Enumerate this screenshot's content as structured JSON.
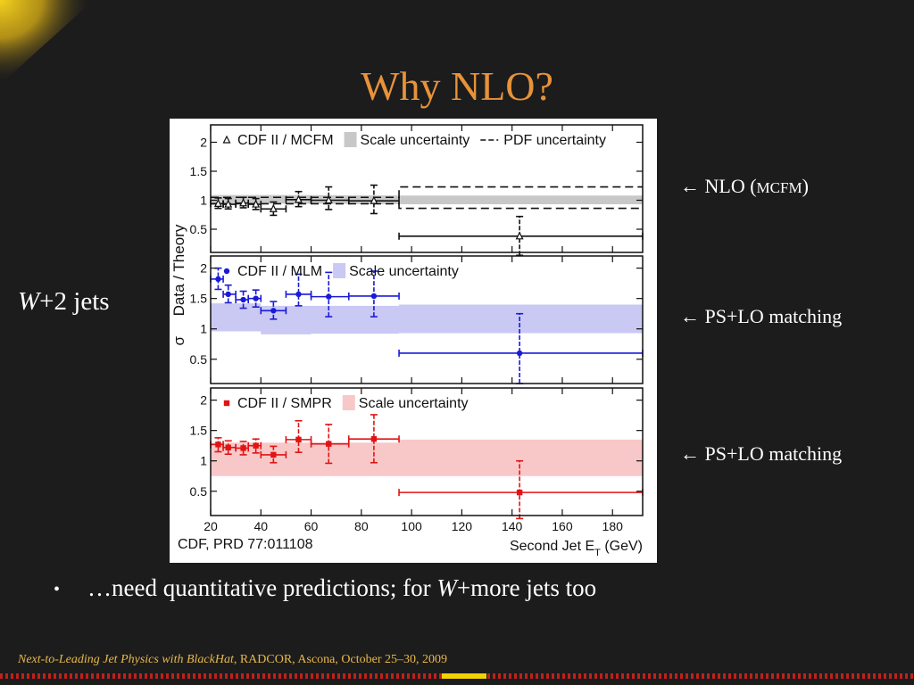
{
  "slide": {
    "title": "Why NLO?",
    "side_label": {
      "italic": "W",
      "rest": "+2 jets"
    },
    "annotations": [
      {
        "arrow": "←",
        "text": "NLO (",
        "small": "MCFM",
        "close": ")"
      },
      {
        "arrow": "←",
        "text": "PS+LO matching",
        "small": "",
        "close": ""
      },
      {
        "arrow": "←",
        "text": "PS+LO matching",
        "small": "",
        "close": ""
      }
    ],
    "bullet": {
      "marker": "•",
      "pre": "…need quantitative predictions; for ",
      "italic": "W",
      "post": "+more jets too"
    },
    "footer": {
      "italic": "Next-to-Leading Jet Physics with BlackHat",
      "rest": ", RADCOR, Ascona, October 25–30, 2009"
    },
    "colors": {
      "background": "#1c1c1c",
      "title": "#e8923a",
      "footer": "#e8b84a",
      "accent": "#f2d200"
    }
  },
  "chart_data": {
    "type": "scatter",
    "xlabel": "Second Jet E",
    "xlabel_sub": "T",
    "xlabel_unit": " (GeV)",
    "ylabel": "Data / Theory",
    "ylabel_prefix": "σ",
    "citation": "CDF, PRD 77:011108",
    "xlim": [
      20,
      192
    ],
    "xticks": [
      20,
      40,
      60,
      80,
      100,
      120,
      140,
      160,
      180
    ],
    "panels": [
      {
        "ylim": [
          0.1,
          2.3
        ],
        "yticks": [
          0.5,
          1,
          1.5,
          2
        ],
        "color": "#111111",
        "marker": "triangle",
        "legend": [
          {
            "type": "marker",
            "label": "CDF II / MCFM"
          },
          {
            "type": "band",
            "color": "#c8c8c8",
            "label": "Scale uncertainty"
          },
          {
            "type": "dash",
            "label": "PDF uncertainty"
          }
        ],
        "band": [
          [
            20,
            0.94,
            1.09
          ],
          [
            60,
            0.94,
            1.09
          ],
          [
            100,
            0.93,
            1.08
          ],
          [
            192,
            0.93,
            1.08
          ]
        ],
        "pdf_upper": [
          [
            20,
            1.05
          ],
          [
            95,
            1.05
          ],
          [
            95,
            1.23
          ],
          [
            192,
            1.23
          ]
        ],
        "pdf_lower": [
          [
            20,
            0.94
          ],
          [
            95,
            0.94
          ],
          [
            95,
            0.86
          ],
          [
            192,
            0.86
          ]
        ],
        "points": [
          {
            "x": 23,
            "y": 0.94,
            "xlo": 20,
            "xhi": 25,
            "ylo": 0.86,
            "yhi": 1.04
          },
          {
            "x": 27,
            "y": 0.93,
            "xlo": 25,
            "xhi": 30,
            "ylo": 0.85,
            "yhi": 1.03
          },
          {
            "x": 33,
            "y": 0.95,
            "xlo": 30,
            "xhi": 35,
            "ylo": 0.87,
            "yhi": 1.05
          },
          {
            "x": 38,
            "y": 0.93,
            "xlo": 35,
            "xhi": 40,
            "ylo": 0.84,
            "yhi": 1.03
          },
          {
            "x": 45,
            "y": 0.85,
            "xlo": 40,
            "xhi": 50,
            "ylo": 0.74,
            "yhi": 0.97
          },
          {
            "x": 55,
            "y": 1.01,
            "xlo": 50,
            "xhi": 60,
            "ylo": 0.89,
            "yhi": 1.15
          },
          {
            "x": 67,
            "y": 1.0,
            "xlo": 60,
            "xhi": 75,
            "ylo": 0.84,
            "yhi": 1.23
          },
          {
            "x": 85,
            "y": 0.99,
            "xlo": 75,
            "xhi": 95,
            "ylo": 0.77,
            "yhi": 1.26
          },
          {
            "x": 143,
            "y": 0.38,
            "xlo": 95,
            "xhi": 192,
            "ylo": 0.05,
            "yhi": 0.72
          }
        ]
      },
      {
        "ylim": [
          0.1,
          2.2
        ],
        "yticks": [
          0.5,
          1,
          1.5,
          2
        ],
        "color": "#1a1ad8",
        "marker": "circle",
        "legend": [
          {
            "type": "marker",
            "label": "CDF II / MLM"
          },
          {
            "type": "band",
            "color": "#c9c9f4",
            "label": "Scale uncertainty"
          }
        ],
        "band": [
          [
            20,
            0.96,
            1.42
          ],
          [
            40,
            0.96,
            1.42
          ],
          [
            40,
            0.91,
            1.38
          ],
          [
            60,
            0.91,
            1.38
          ],
          [
            60,
            0.92,
            1.38
          ],
          [
            95,
            0.92,
            1.38
          ],
          [
            95,
            0.93,
            1.4
          ],
          [
            192,
            0.93,
            1.4
          ]
        ],
        "points": [
          {
            "x": 23,
            "y": 1.82,
            "xlo": 20,
            "xhi": 25,
            "ylo": 1.65,
            "yhi": 2.0
          },
          {
            "x": 27,
            "y": 1.57,
            "xlo": 25,
            "xhi": 30,
            "ylo": 1.43,
            "yhi": 1.72
          },
          {
            "x": 33,
            "y": 1.48,
            "xlo": 30,
            "xhi": 35,
            "ylo": 1.34,
            "yhi": 1.62
          },
          {
            "x": 38,
            "y": 1.5,
            "xlo": 35,
            "xhi": 40,
            "ylo": 1.36,
            "yhi": 1.64
          },
          {
            "x": 45,
            "y": 1.3,
            "xlo": 40,
            "xhi": 50,
            "ylo": 1.16,
            "yhi": 1.45
          },
          {
            "x": 55,
            "y": 1.57,
            "xlo": 50,
            "xhi": 60,
            "ylo": 1.38,
            "yhi": 1.9
          },
          {
            "x": 67,
            "y": 1.53,
            "xlo": 60,
            "xhi": 75,
            "ylo": 1.2,
            "yhi": 1.93
          },
          {
            "x": 85,
            "y": 1.54,
            "xlo": 75,
            "xhi": 95,
            "ylo": 1.2,
            "yhi": 1.95
          },
          {
            "x": 143,
            "y": 0.6,
            "xlo": 95,
            "xhi": 192,
            "ylo": 0.1,
            "yhi": 1.25
          }
        ]
      },
      {
        "ylim": [
          0.1,
          2.2
        ],
        "yticks": [
          0.5,
          1,
          1.5,
          2
        ],
        "color": "#e01414",
        "marker": "square",
        "legend": [
          {
            "type": "marker",
            "label": "CDF II / SMPR"
          },
          {
            "type": "band",
            "color": "#f8c8c8",
            "label": "Scale uncertainty"
          }
        ],
        "band": [
          [
            20,
            0.75,
            1.3
          ],
          [
            95,
            0.75,
            1.3
          ],
          [
            95,
            0.75,
            1.35
          ],
          [
            192,
            0.75,
            1.35
          ]
        ],
        "points": [
          {
            "x": 23,
            "y": 1.27,
            "xlo": 20,
            "xhi": 25,
            "ylo": 1.15,
            "yhi": 1.38
          },
          {
            "x": 27,
            "y": 1.22,
            "xlo": 25,
            "xhi": 30,
            "ylo": 1.11,
            "yhi": 1.33
          },
          {
            "x": 33,
            "y": 1.21,
            "xlo": 30,
            "xhi": 35,
            "ylo": 1.1,
            "yhi": 1.32
          },
          {
            "x": 38,
            "y": 1.25,
            "xlo": 35,
            "xhi": 40,
            "ylo": 1.13,
            "yhi": 1.36
          },
          {
            "x": 45,
            "y": 1.1,
            "xlo": 40,
            "xhi": 50,
            "ylo": 0.97,
            "yhi": 1.24
          },
          {
            "x": 55,
            "y": 1.35,
            "xlo": 50,
            "xhi": 60,
            "ylo": 1.14,
            "yhi": 1.66
          },
          {
            "x": 67,
            "y": 1.28,
            "xlo": 60,
            "xhi": 75,
            "ylo": 0.96,
            "yhi": 1.6
          },
          {
            "x": 85,
            "y": 1.36,
            "xlo": 75,
            "xhi": 95,
            "ylo": 0.97,
            "yhi": 1.76
          },
          {
            "x": 143,
            "y": 0.48,
            "xlo": 95,
            "xhi": 192,
            "ylo": 0.05,
            "yhi": 1.0
          }
        ]
      }
    ]
  }
}
